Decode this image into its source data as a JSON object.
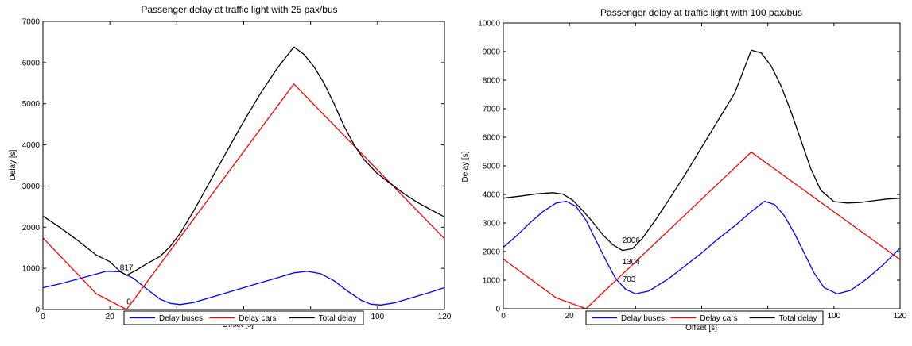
{
  "chart_data": [
    {
      "type": "line",
      "title": "Passenger delay at traffic light with 25 pax/bus",
      "xlabel": "Offset [s]",
      "ylabel": "Delay [s]",
      "xlim": [
        0,
        120
      ],
      "ylim": [
        0,
        7000
      ],
      "xticks": [
        "0",
        "20",
        "40",
        "60",
        "80",
        "100",
        "120"
      ],
      "yticks": [
        "0",
        "1000",
        "2000",
        "3000",
        "4000",
        "5000",
        "6000",
        "7000"
      ],
      "grid": false,
      "legend_position": "bottom-center",
      "series": [
        {
          "name": "Delay buses",
          "color": "#0000ff",
          "x": [
            0,
            5,
            10,
            15,
            19,
            23,
            27,
            31,
            35,
            38,
            41,
            45,
            50,
            55,
            60,
            65,
            70,
            75,
            79,
            83,
            87,
            91,
            95,
            98,
            101,
            105,
            110,
            115,
            120
          ],
          "y": [
            530,
            620,
            730,
            840,
            930,
            920,
            760,
            500,
            250,
            150,
            120,
            170,
            290,
            410,
            530,
            650,
            770,
            890,
            930,
            870,
            700,
            450,
            230,
            130,
            110,
            160,
            280,
            400,
            530
          ]
        },
        {
          "name": "Delay cars",
          "color": "#ff0000",
          "x": [
            0,
            16,
            25,
            75,
            120
          ],
          "y": [
            1740,
            380,
            0,
            5480,
            1720
          ]
        },
        {
          "name": "Total delay",
          "color": "#000000",
          "x": [
            0,
            5,
            10,
            16,
            20,
            23,
            25,
            28,
            31,
            35,
            38,
            41,
            45,
            50,
            55,
            60,
            65,
            70,
            75,
            78,
            81,
            84,
            87,
            90,
            93,
            96,
            100,
            104,
            108,
            112,
            116,
            120
          ],
          "y": [
            2270,
            2000,
            1700,
            1320,
            1160,
            930,
            830,
            960,
            1110,
            1290,
            1530,
            1850,
            2390,
            3120,
            3850,
            4570,
            5250,
            5860,
            6380,
            6200,
            5900,
            5500,
            5000,
            4450,
            4000,
            3640,
            3300,
            3050,
            2810,
            2600,
            2420,
            2250
          ]
        }
      ],
      "annotations": [
        {
          "text": "817",
          "x": 23,
          "y": 950
        },
        {
          "text": "0",
          "x": 25,
          "y": 130
        }
      ]
    },
    {
      "type": "line",
      "title": "Passenger delay at traffic light with 100 pax/bus",
      "xlabel": "Offset [s]",
      "ylabel": "Delay [s]",
      "xlim": [
        0,
        120
      ],
      "ylim": [
        0,
        10000
      ],
      "xticks": [
        "0",
        "20",
        "40",
        "60",
        "80",
        "100",
        "120"
      ],
      "yticks": [
        "0",
        "1000",
        "2000",
        "3000",
        "4000",
        "5000",
        "6000",
        "7000",
        "8000",
        "9000",
        "10000"
      ],
      "grid": false,
      "legend_position": "bottom-center",
      "series": [
        {
          "name": "Delay buses",
          "color": "#0000ff",
          "x": [
            0,
            4,
            8,
            12,
            16,
            19,
            22,
            25,
            28,
            31,
            34,
            37,
            40,
            44,
            50,
            55,
            60,
            65,
            70,
            75,
            79,
            82,
            85,
            88,
            91,
            94,
            97,
            101,
            105,
            110,
            115,
            120
          ],
          "y": [
            2150,
            2550,
            3000,
            3400,
            3700,
            3760,
            3580,
            3100,
            2400,
            1700,
            1050,
            680,
            520,
            620,
            1050,
            1500,
            1950,
            2450,
            2900,
            3400,
            3760,
            3650,
            3250,
            2650,
            1950,
            1250,
            740,
            520,
            640,
            1050,
            1550,
            2120
          ]
        },
        {
          "name": "Delay cars",
          "color": "#ff0000",
          "x": [
            0,
            16,
            25,
            75,
            120
          ],
          "y": [
            1740,
            380,
            0,
            5480,
            1720
          ]
        },
        {
          "name": "Total delay",
          "color": "#000000",
          "x": [
            0,
            5,
            10,
            15,
            18,
            21,
            24,
            27,
            30,
            33,
            36,
            39,
            42,
            46,
            50,
            55,
            60,
            65,
            70,
            75,
            78,
            81,
            84,
            87,
            90,
            93,
            96,
            100,
            104,
            108,
            112,
            116,
            120
          ],
          "y": [
            3870,
            3940,
            4020,
            4060,
            4010,
            3800,
            3440,
            3040,
            2600,
            2250,
            2040,
            2100,
            2450,
            3100,
            3800,
            4700,
            5650,
            6600,
            7550,
            9050,
            8950,
            8500,
            7800,
            6900,
            5900,
            4900,
            4150,
            3750,
            3700,
            3720,
            3780,
            3840,
            3870
          ]
        }
      ],
      "annotations": [
        {
          "text": "2006",
          "x": 36,
          "y": 2300
        },
        {
          "text": "1304",
          "x": 36,
          "y": 1560
        },
        {
          "text": "703",
          "x": 36,
          "y": 940
        }
      ]
    }
  ],
  "legend": {
    "labels": [
      "Delay buses",
      "Delay cars",
      "Total delay"
    ],
    "colors": [
      "#0000ff",
      "#ff0000",
      "#000000"
    ]
  }
}
